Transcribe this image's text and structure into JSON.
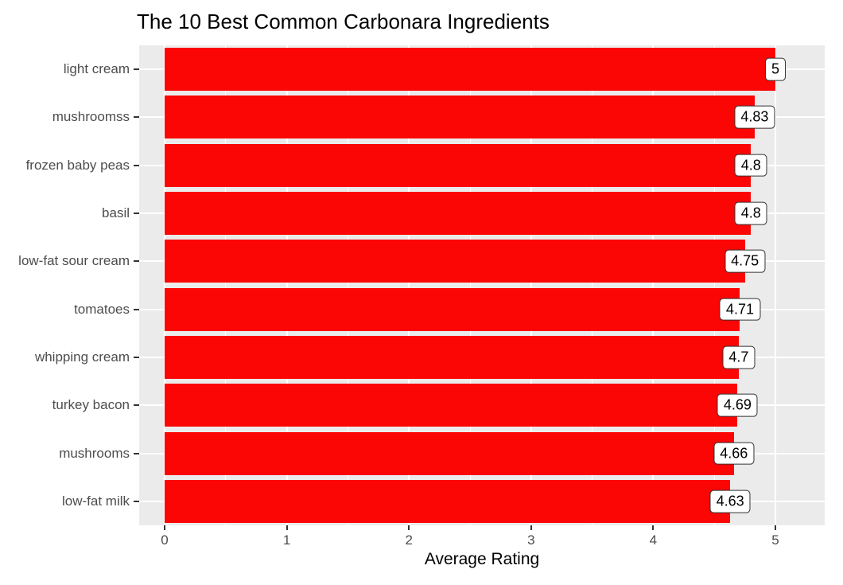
{
  "chart_data": {
    "type": "bar",
    "orientation": "horizontal",
    "title": "The 10 Best Common Carbonara Ingredients",
    "xlabel": "Average Rating",
    "ylabel": "",
    "categories": [
      "light cream",
      "mushroomss",
      "frozen baby peas",
      "basil",
      "low-fat sour cream",
      "tomatoes",
      "whipping cream",
      "turkey bacon",
      "mushrooms",
      "low-fat milk"
    ],
    "values": [
      5,
      4.83,
      4.8,
      4.8,
      4.75,
      4.71,
      4.7,
      4.69,
      4.66,
      4.63
    ],
    "value_labels": [
      "5",
      "4.83",
      "4.8",
      "4.8",
      "4.75",
      "4.71",
      "4.7",
      "4.69",
      "4.66",
      "4.63"
    ],
    "x_ticks": [
      0,
      1,
      2,
      3,
      4,
      5
    ],
    "x_minor_ticks": [
      0.5,
      1.5,
      2.5,
      3.5,
      4.5
    ],
    "xlim": [
      -0.21,
      5.4
    ],
    "grid": "major-and-minor",
    "legend": "none",
    "colors": {
      "bar": "#fb0505",
      "panel_background": "#ebebeb",
      "gridline": "#ffffff",
      "axis_text": "#4d4d4d",
      "tick_mark": "#333333",
      "title_text": "#000000",
      "label_box_fill": "#ffffff",
      "label_box_border": "#333333"
    }
  }
}
